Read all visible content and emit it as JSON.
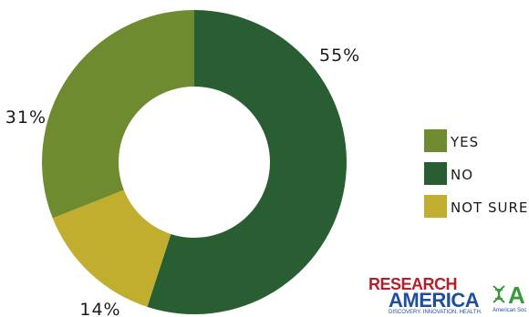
{
  "chart_data": {
    "type": "pie",
    "donut": true,
    "start_angle_deg": 0,
    "direction": "clockwise",
    "slices": [
      {
        "label": "NO",
        "value": 55,
        "display": "55%",
        "color": "#285e32"
      },
      {
        "label": "NOT SURE",
        "value": 14,
        "display": "14%",
        "color": "#c2ae2e"
      },
      {
        "label": "YES",
        "value": 31,
        "display": "31%",
        "color": "#6e8b2f"
      }
    ],
    "legend": [
      {
        "label": "YES",
        "color": "#6e8b2f"
      },
      {
        "label": "NO",
        "color": "#285e32"
      },
      {
        "label": "NOT SURE",
        "color": "#c2ae2e"
      }
    ],
    "legend_position": "right"
  },
  "logos": {
    "research_america": {
      "line1": "RESEARCH",
      "line2": "AMERICA",
      "tagline": "DISCOVERY. INNOVATION. HEALTH."
    },
    "asm": {
      "mark": "A",
      "subtitle": "American Soc"
    }
  }
}
